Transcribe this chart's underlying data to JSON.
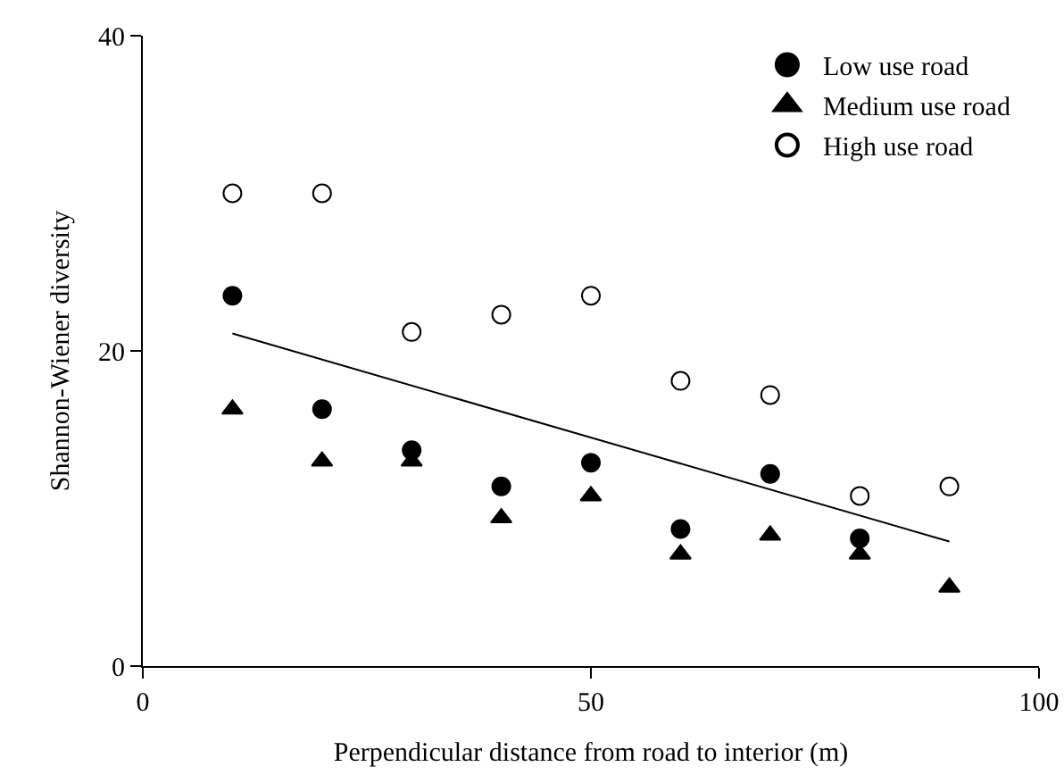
{
  "chart_data": {
    "type": "scatter",
    "xlabel": "Perpendicular distance from road to interior (m)",
    "ylabel": "Shannon-Wiener diversity",
    "x": [
      10,
      20,
      30,
      40,
      50,
      60,
      70,
      80,
      90
    ],
    "series": [
      {
        "name": "Low use road",
        "color": "#000000",
        "marker": "circle",
        "values": [
          23.5,
          16.3,
          13.7,
          11.4,
          12.9,
          8.7,
          12.2,
          8.1,
          null
        ]
      },
      {
        "name": "Medium use road",
        "color": "#000000",
        "marker": "triangle",
        "values": [
          16.3,
          13.0,
          13.0,
          9.4,
          10.8,
          7.1,
          8.3,
          7.1,
          5.0
        ]
      },
      {
        "name": "High use road",
        "color": "#ffffff",
        "marker": "circle",
        "values": [
          30.0,
          30.0,
          21.2,
          22.3,
          23.5,
          18.1,
          17.2,
          10.8,
          11.4
        ]
      },
      {
        "type": "line",
        "color": "#000000",
        "x": [
          10,
          90
        ],
        "values": [
          21.1,
          7.9
        ]
      }
    ],
    "xlim": [
      0,
      100
    ],
    "ylim": [
      0,
      40
    ],
    "xticks": [
      0,
      50,
      100
    ],
    "yticks": [
      0,
      20,
      40
    ],
    "grid": false,
    "legend": "top right"
  }
}
